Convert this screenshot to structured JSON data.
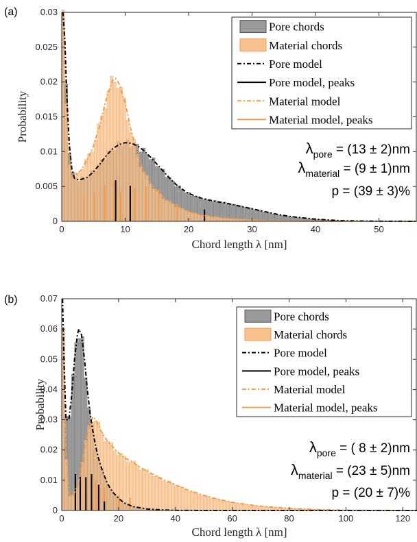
{
  "chart_data": [
    {
      "panel_label": "(a)",
      "type": "bar",
      "xlabel": "Chord length λ [nm]",
      "ylabel": "Probability",
      "xlim": [
        0,
        56
      ],
      "ylim": [
        0,
        0.03
      ],
      "xticks": [
        "0",
        "10",
        "20",
        "30",
        "40",
        "50"
      ],
      "yticks": [
        "0",
        "0.005",
        "0.01",
        "0.015",
        "0.02",
        "0.025",
        "0.03"
      ],
      "legend_position": "top-right",
      "legend": [
        "Pore chords",
        "Material chords",
        "Pore model",
        "Pore model, peaks",
        "Material model",
        "Material model, peaks"
      ],
      "colors": {
        "pore": "#555555",
        "material": "#f39c4a",
        "pore_fill": "#9a9a9a",
        "material_fill": "#f7c18e"
      },
      "annotations": [
        {
          "sym": "λ",
          "sub": "pore",
          "text": " = (13 ± 2)nm"
        },
        {
          "sym": "λ",
          "sub": "material",
          "text": " = (9 ± 1)nm"
        },
        {
          "sym": "",
          "sub": "",
          "text": "p = (39 ± 3)%"
        }
      ],
      "pore_model": [
        [
          0.2,
          0.03
        ],
        [
          0.5,
          0.026
        ],
        [
          0.8,
          0.018
        ],
        [
          1.2,
          0.011
        ],
        [
          1.6,
          0.0075
        ],
        [
          2,
          0.0062
        ],
        [
          2.5,
          0.006
        ],
        [
          3,
          0.006
        ],
        [
          4,
          0.0063
        ],
        [
          5,
          0.0071
        ],
        [
          6,
          0.0082
        ],
        [
          7,
          0.0094
        ],
        [
          8,
          0.0104
        ],
        [
          9,
          0.011
        ],
        [
          10,
          0.0113
        ],
        [
          11,
          0.0112
        ],
        [
          12,
          0.0108
        ],
        [
          13,
          0.0101
        ],
        [
          14,
          0.0092
        ],
        [
          15,
          0.0082
        ],
        [
          16,
          0.0072
        ],
        [
          17,
          0.0062
        ],
        [
          18,
          0.0053
        ],
        [
          19,
          0.0046
        ],
        [
          20,
          0.004
        ],
        [
          22,
          0.0033
        ],
        [
          24,
          0.0029
        ],
        [
          26,
          0.0026
        ],
        [
          28,
          0.0022
        ],
        [
          30,
          0.0018
        ],
        [
          32,
          0.0014
        ],
        [
          34,
          0.001
        ],
        [
          36,
          0.0007
        ],
        [
          38,
          0.0005
        ],
        [
          40,
          0.0003
        ],
        [
          42,
          0.0002
        ],
        [
          44,
          0.0001
        ],
        [
          47,
          5e-05
        ],
        [
          50,
          2e-05
        ],
        [
          56,
          0
        ]
      ],
      "material_model": [
        [
          0.2,
          0.03
        ],
        [
          0.5,
          0.024
        ],
        [
          0.8,
          0.016
        ],
        [
          1.2,
          0.009
        ],
        [
          1.6,
          0.0065
        ],
        [
          2,
          0.0064
        ],
        [
          3,
          0.0073
        ],
        [
          4,
          0.0088
        ],
        [
          5,
          0.0108
        ],
        [
          6,
          0.0138
        ],
        [
          7,
          0.0175
        ],
        [
          8,
          0.0202
        ],
        [
          8.5,
          0.0205
        ],
        [
          9,
          0.0198
        ],
        [
          10,
          0.017
        ],
        [
          11,
          0.0128
        ],
        [
          12,
          0.0094
        ],
        [
          13,
          0.007
        ],
        [
          14,
          0.0055
        ],
        [
          15,
          0.0043
        ],
        [
          16,
          0.0034
        ],
        [
          18,
          0.0022
        ],
        [
          20,
          0.0014
        ],
        [
          22,
          0.0009
        ],
        [
          25,
          0.0005
        ],
        [
          28,
          0.0003
        ],
        [
          32,
          0.0001
        ],
        [
          36,
          4e-05
        ],
        [
          40,
          0
        ],
        [
          56,
          0
        ]
      ],
      "pore_peaks": [
        [
          8.5,
          0.0059
        ],
        [
          10.8,
          0.0051
        ],
        [
          22.5,
          0.0017
        ]
      ],
      "material_peaks": [
        [
          3.5,
          0.0038
        ],
        [
          5.2,
          0.0042
        ],
        [
          6.8,
          0.0052
        ],
        [
          8.2,
          0.0057
        ],
        [
          9.3,
          0.0043
        ],
        [
          11.5,
          0.0047
        ],
        [
          13.3,
          0.005
        ],
        [
          15.3,
          0.0046
        ],
        [
          18.2,
          0.0025
        ]
      ]
    },
    {
      "panel_label": "(b)",
      "type": "bar",
      "xlabel": "Chord length λ [nm]",
      "ylabel": "Probability",
      "xlim": [
        0,
        125
      ],
      "ylim": [
        0,
        0.07
      ],
      "xticks": [
        "0",
        "20",
        "40",
        "60",
        "80",
        "100",
        "120"
      ],
      "yticks": [
        "0",
        "0.01",
        "0.02",
        "0.03",
        "0.04",
        "0.05",
        "0.06",
        "0.07"
      ],
      "legend_position": "top-right",
      "legend": [
        "Pore chords",
        "Material chords",
        "Pore model",
        "Pore model, peaks",
        "Material model",
        "Material model, peaks"
      ],
      "colors": {
        "pore": "#555555",
        "material": "#f39c4a",
        "pore_fill": "#9a9a9a",
        "material_fill": "#f7c18e"
      },
      "annotations": [
        {
          "sym": "λ",
          "sub": "pore",
          "text": " = ( 8 ± 2)nm"
        },
        {
          "sym": "λ",
          "sub": "material",
          "text": " = (23 ± 5)nm"
        },
        {
          "sym": "",
          "sub": "",
          "text": "p = (20 ± 7)%"
        }
      ],
      "pore_model": [
        [
          0.3,
          0.07
        ],
        [
          0.8,
          0.05
        ],
        [
          1.5,
          0.03
        ],
        [
          2.5,
          0.03
        ],
        [
          3.5,
          0.038
        ],
        [
          4.5,
          0.05
        ],
        [
          5.5,
          0.058
        ],
        [
          6,
          0.06
        ],
        [
          7,
          0.058
        ],
        [
          8,
          0.05
        ],
        [
          9,
          0.04
        ],
        [
          10,
          0.032
        ],
        [
          11,
          0.026
        ],
        [
          12,
          0.021
        ],
        [
          13,
          0.017
        ],
        [
          14,
          0.014
        ],
        [
          16,
          0.009
        ],
        [
          18,
          0.006
        ],
        [
          20,
          0.004
        ],
        [
          22,
          0.0025
        ],
        [
          25,
          0.0013
        ],
        [
          30,
          0.0005
        ],
        [
          35,
          0.0002
        ],
        [
          40,
          5e-05
        ],
        [
          50,
          0
        ],
        [
          125,
          0
        ]
      ],
      "material_model": [
        [
          0.3,
          0.07
        ],
        [
          0.8,
          0.045
        ],
        [
          1.5,
          0.02
        ],
        [
          2.5,
          0.005
        ],
        [
          4,
          0.005
        ],
        [
          6,
          0.009
        ],
        [
          8,
          0.02
        ],
        [
          10,
          0.029
        ],
        [
          11,
          0.031
        ],
        [
          12,
          0.03
        ],
        [
          14,
          0.026
        ],
        [
          16,
          0.023
        ],
        [
          18,
          0.021
        ],
        [
          20,
          0.019
        ],
        [
          22,
          0.0175
        ],
        [
          25,
          0.016
        ],
        [
          28,
          0.014
        ],
        [
          30,
          0.013
        ],
        [
          35,
          0.0105
        ],
        [
          40,
          0.0085
        ],
        [
          45,
          0.0065
        ],
        [
          50,
          0.005
        ],
        [
          55,
          0.0037
        ],
        [
          60,
          0.0027
        ],
        [
          65,
          0.002
        ],
        [
          70,
          0.0014
        ],
        [
          80,
          0.0007
        ],
        [
          90,
          0.0003
        ],
        [
          100,
          0.0001
        ],
        [
          110,
          3e-05
        ],
        [
          125,
          0
        ]
      ],
      "pore_peaks": [
        [
          4.8,
          0.012
        ],
        [
          6.5,
          0.012
        ],
        [
          8.5,
          0.011
        ],
        [
          10.5,
          0.012
        ],
        [
          13,
          0.0085
        ],
        [
          15,
          0.003
        ]
      ],
      "material_peaks": [
        [
          8.5,
          0.006
        ],
        [
          12,
          0.01
        ],
        [
          15,
          0.0075
        ],
        [
          20,
          0.005
        ],
        [
          24,
          0.0043
        ]
      ]
    }
  ]
}
